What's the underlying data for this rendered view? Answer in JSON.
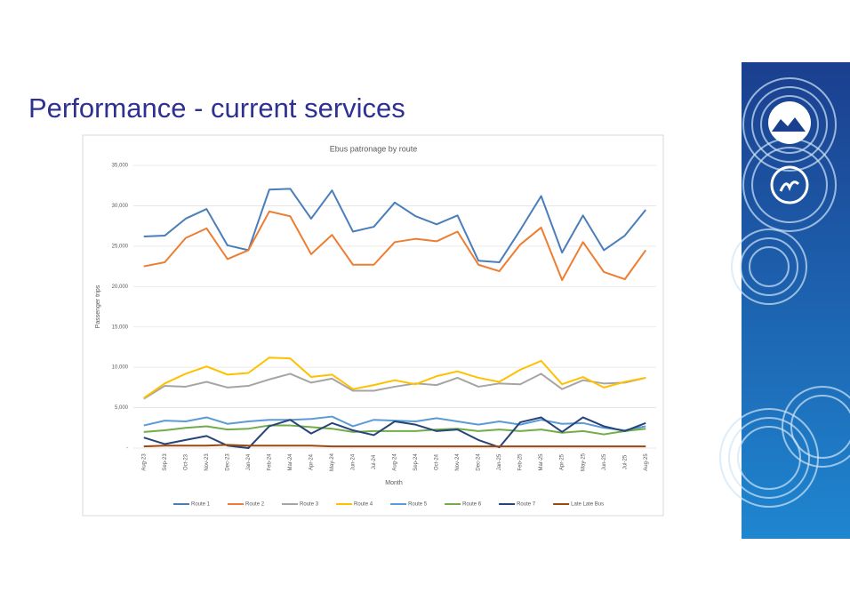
{
  "page": {
    "title": "Performance - current services"
  },
  "chart_data": {
    "type": "line",
    "title": "Ebus patronage by route",
    "x_label": "Month",
    "y_label": "Passenger trips",
    "categories": [
      "Aug-23",
      "Sep-23",
      "Oct-23",
      "Nov-23",
      "Dec-23",
      "Jan-24",
      "Feb-24",
      "Mar-24",
      "Apr-24",
      "May-24",
      "Jun-24",
      "Jul-24",
      "Aug-24",
      "Sep-24",
      "Oct-24",
      "Nov-24",
      "Dec-24",
      "Jan-25",
      "Feb-25",
      "Mar-25",
      "Apr-25",
      "May-25",
      "Jun-25",
      "Jul-25",
      "Aug-25"
    ],
    "ylim": [
      0,
      35000
    ],
    "yticks": [
      {
        "value": 0,
        "label": "-"
      },
      {
        "value": 5000,
        "label": "5,000"
      },
      {
        "value": 10000,
        "label": "10,000"
      },
      {
        "value": 15000,
        "label": "15,000"
      },
      {
        "value": 20000,
        "label": "20,000"
      },
      {
        "value": 25000,
        "label": "25,000"
      },
      {
        "value": 30000,
        "label": "30,000"
      },
      {
        "value": 35000,
        "label": "35,000"
      }
    ],
    "grid": true,
    "legend": "bottom",
    "series": [
      {
        "name": "Route 1",
        "color": "#4a7ebb",
        "values": [
          26200,
          26300,
          28400,
          29600,
          25100,
          24500,
          32000,
          32100,
          28400,
          31900,
          26800,
          27400,
          30400,
          28700,
          27700,
          28800,
          23200,
          23000,
          27000,
          31200,
          24200,
          28800,
          24500,
          26300,
          29500
        ]
      },
      {
        "name": "Route 2",
        "color": "#ed7d31",
        "values": [
          22500,
          23000,
          26000,
          27200,
          23400,
          24500,
          29300,
          28700,
          24000,
          26400,
          22700,
          22700,
          25500,
          25900,
          25600,
          26800,
          22700,
          21900,
          25200,
          27300,
          20800,
          25500,
          21800,
          20900,
          24500
        ]
      },
      {
        "name": "Route 3",
        "color": "#a5a5a5",
        "values": [
          6100,
          7700,
          7600,
          8200,
          7500,
          7700,
          8500,
          9200,
          8100,
          8600,
          7100,
          7100,
          7600,
          8000,
          7800,
          8700,
          7600,
          8000,
          7900,
          9200,
          7300,
          8400,
          8000,
          8100,
          8700
        ]
      },
      {
        "name": "Route 4",
        "color": "#ffc000",
        "values": [
          6200,
          8000,
          9200,
          10100,
          9100,
          9300,
          11200,
          11100,
          8800,
          9100,
          7300,
          7800,
          8400,
          7900,
          8900,
          9500,
          8700,
          8200,
          9700,
          10800,
          7900,
          8800,
          7500,
          8200,
          8700
        ]
      },
      {
        "name": "Route 5",
        "color": "#5b9bd5",
        "values": [
          2800,
          3400,
          3300,
          3800,
          3000,
          3300,
          3500,
          3500,
          3600,
          3900,
          2700,
          3500,
          3400,
          3300,
          3700,
          3300,
          2900,
          3300,
          2900,
          3500,
          3000,
          3100,
          2500,
          2200,
          2700
        ]
      },
      {
        "name": "Route 6",
        "color": "#70ad47",
        "values": [
          2000,
          2200,
          2500,
          2700,
          2300,
          2400,
          2800,
          2800,
          2600,
          2400,
          2000,
          2100,
          2100,
          2100,
          2300,
          2400,
          2100,
          2300,
          2100,
          2300,
          1900,
          2100,
          1700,
          2100,
          2400
        ]
      },
      {
        "name": "Route 7",
        "color": "#264478",
        "values": [
          1300,
          500,
          1000,
          1500,
          300,
          0,
          2700,
          3500,
          1800,
          3100,
          2200,
          1600,
          3300,
          2900,
          2100,
          2300,
          1000,
          100,
          3200,
          3800,
          2000,
          3800,
          2700,
          2100,
          3100
        ]
      },
      {
        "name": "Late Late Bus",
        "color": "#9e480e",
        "values": [
          200,
          300,
          300,
          300,
          400,
          300,
          300,
          300,
          300,
          200,
          200,
          200,
          200,
          200,
          200,
          200,
          200,
          200,
          200,
          200,
          200,
          200,
          200,
          200,
          200
        ]
      }
    ]
  }
}
